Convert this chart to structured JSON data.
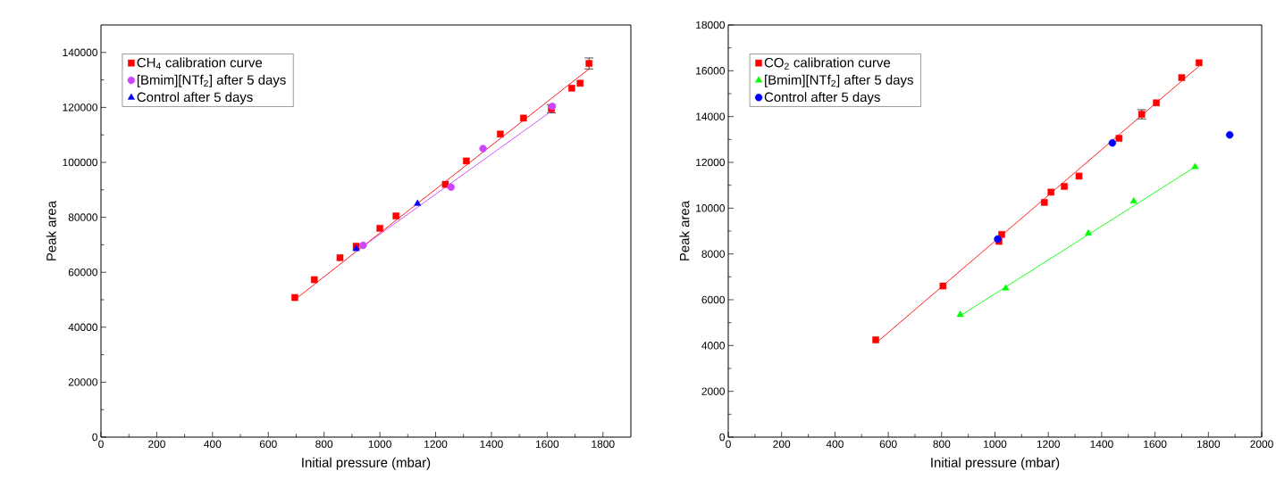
{
  "chart_data": [
    {
      "type": "scatter",
      "xlabel": "Initial pressure (mbar)",
      "ylabel": "Peak area",
      "xlim": [
        0,
        1900
      ],
      "ylim": [
        0,
        150000
      ],
      "xticks": [
        0,
        200,
        400,
        600,
        800,
        1000,
        1200,
        1400,
        1600,
        1800
      ],
      "yticks": [
        0,
        20000,
        40000,
        60000,
        80000,
        100000,
        120000,
        140000
      ],
      "legend": "top left",
      "grid": false,
      "series": [
        {
          "name": "CH$_{4}$ calibration curve",
          "color": "#ff0000",
          "marker": "square",
          "x": [
            695,
            765,
            857,
            915,
            1000,
            1058,
            1235,
            1310,
            1432,
            1515,
            1615,
            1688,
            1718,
            1750
          ],
          "values": [
            50800,
            57300,
            65300,
            69500,
            76000,
            80500,
            92000,
            100500,
            110300,
            116100,
            119500,
            127000,
            128800,
            136000
          ],
          "errors": [
            null,
            null,
            null,
            null,
            null,
            null,
            null,
            null,
            null,
            null,
            1500,
            null,
            null,
            2000
          ]
        },
        {
          "name": "[Bmim][NTf$_{2}$] after 5 days",
          "color": "#cc44ff",
          "marker": "circle",
          "x": [
            940,
            1255,
            1370,
            1618
          ],
          "values": [
            69800,
            91000,
            105000,
            120400
          ]
        },
        {
          "name": "Control after 5 days",
          "color": "#0000ff",
          "marker": "triangle",
          "x": [
            915,
            1135
          ],
          "values": [
            68500,
            85000
          ]
        },
        {
          "type": "line",
          "color": "#ff0000",
          "marker": "none",
          "x": [
            695,
            1750
          ],
          "values": [
            50000,
            134000
          ]
        },
        {
          "type": "line",
          "color": "#cc44ff",
          "marker": "none",
          "x": [
            920,
            1620
          ],
          "values": [
            68000,
            119000
          ]
        }
      ]
    },
    {
      "type": "scatter",
      "xlabel": "Initial pressure (mbar)",
      "ylabel": "Peak area",
      "xlim": [
        0,
        2000
      ],
      "ylim": [
        0,
        18000
      ],
      "xticks": [
        0,
        200,
        400,
        600,
        800,
        1000,
        1200,
        1400,
        1600,
        1800,
        2000
      ],
      "yticks": [
        0,
        2000,
        4000,
        6000,
        8000,
        10000,
        12000,
        14000,
        16000,
        18000
      ],
      "legend": "top left",
      "grid": false,
      "series": [
        {
          "name": "CO$_{2}$ calibration curve",
          "color": "#ff0000",
          "marker": "square",
          "x": [
            553,
            805,
            1015,
            1025,
            1185,
            1210,
            1260,
            1315,
            1465,
            1550,
            1605,
            1700,
            1765
          ],
          "values": [
            4250,
            6600,
            8550,
            8850,
            10250,
            10700,
            10950,
            11400,
            13050,
            14100,
            14600,
            15700,
            16350
          ],
          "errors": [
            null,
            null,
            null,
            null,
            null,
            null,
            null,
            null,
            null,
            200,
            null,
            null,
            null
          ]
        },
        {
          "name": "[Bmim][NTf$_{2}$] after 5 days",
          "color": "#00ff00",
          "marker": "triangle",
          "x": [
            870,
            1040,
            1350,
            1520,
            1750
          ],
          "values": [
            5350,
            6500,
            8900,
            10300,
            11800
          ]
        },
        {
          "name": "Control after 5 days",
          "color": "#0000ff",
          "marker": "circle",
          "x": [
            1010,
            1440,
            1880
          ],
          "values": [
            8650,
            12850,
            13200
          ]
        },
        {
          "type": "line",
          "color": "#ff0000",
          "marker": "none",
          "x": [
            553,
            1765
          ],
          "values": [
            4100,
            16200
          ]
        },
        {
          "type": "line",
          "color": "#00ff00",
          "marker": "none",
          "x": [
            870,
            1750
          ],
          "values": [
            5300,
            11800
          ]
        }
      ]
    }
  ]
}
